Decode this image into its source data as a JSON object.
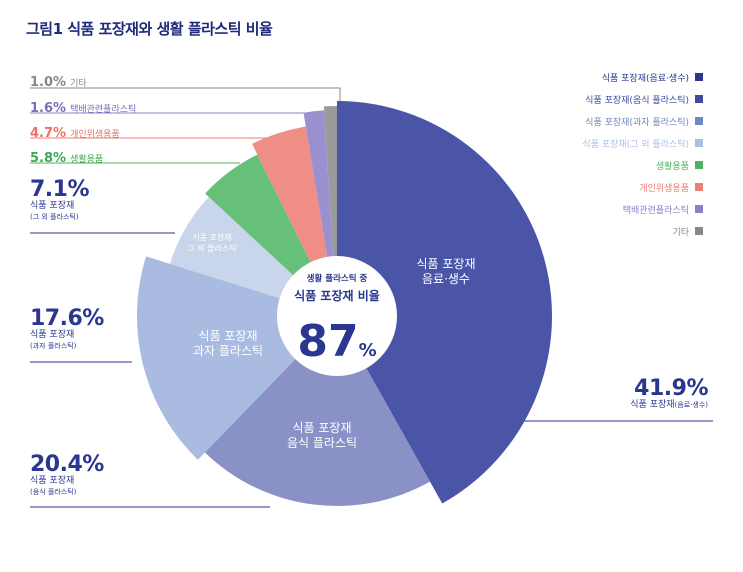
{
  "title": "그림1  식품 포장재와 생활 플라스틱 비율",
  "colors": {
    "beverage": "#4a55a8",
    "food": "#8a91c6",
    "snack": "#a9bbe0",
    "other_food": "#c9d5ea",
    "household": "#66c07a",
    "hygiene": "#ef8e84",
    "delivery": "#9b90cf",
    "etc": "#9a9a9a",
    "navy": "#2a3690"
  },
  "center": {
    "line1": "생활 플라스틱 중",
    "line2": "식품 포장재 비율",
    "value": "87",
    "unit": "%"
  },
  "slice_labels": {
    "beverage": [
      "식품 포장재",
      "음료·생수"
    ],
    "food": [
      "식품 포장재",
      "음식 플라스틱"
    ],
    "snack": [
      "식품 포장재",
      "과자 플라스틱"
    ],
    "other_food": [
      "식품 포장재",
      "그 외 플라스틱"
    ]
  },
  "external": {
    "etc": {
      "pct": "1.0%",
      "name": "기타"
    },
    "delivery": {
      "pct": "1.6%",
      "name": "택배관련플라스틱"
    },
    "hygiene": {
      "pct": "4.7%",
      "name": "개인위생용품"
    },
    "household": {
      "pct": "5.8%",
      "name": "생활용품"
    },
    "other_food": {
      "pct": "7.1%",
      "sub1": "식품 포장재",
      "sub2": "(그 외 플라스틱)"
    },
    "snack": {
      "pct": "17.6%",
      "sub1": "식품 포장재",
      "sub2": "(과자 플라스틱)"
    },
    "food": {
      "pct": "20.4%",
      "sub1": "식품 포장재",
      "sub2": "(음식 플라스틱)"
    },
    "beverage": {
      "pct": "41.9%",
      "sub1": "식품 포장재",
      "sub2": "(음료·생수)"
    }
  },
  "legend": [
    {
      "label": "식품 포장재(음료·생수)",
      "color": "#2a3690"
    },
    {
      "label": "식품 포장재(음식 플라스틱)",
      "color": "#3d4aa0"
    },
    {
      "label": "식품 포장재(과자 플라스틱)",
      "color": "#6f86c4"
    },
    {
      "label": "식품 포장재(그 외 플라스틱)",
      "color": "#aabfe2"
    },
    {
      "label": "생활용품",
      "color": "#4fb35f"
    },
    {
      "label": "개인위생용품",
      "color": "#ee7d72"
    },
    {
      "label": "택배관련플라스틱",
      "color": "#8c80c8"
    },
    {
      "label": "기타",
      "color": "#888888"
    }
  ],
  "chart_data": {
    "type": "pie",
    "categories": [
      "식품 포장재(음료·생수)",
      "식품 포장재(음식 플라스틱)",
      "식품 포장재(과자 플라스틱)",
      "식품 포장재(그 외 플라스틱)",
      "생활용품",
      "개인위생용품",
      "택배관련플라스틱",
      "기타"
    ],
    "values": [
      41.9,
      20.4,
      17.6,
      7.1,
      5.8,
      4.7,
      1.6,
      1.0
    ],
    "title": "그림1  식품 포장재와 생활 플라스틱 비율",
    "legend": "top-right",
    "center_value": 87
  }
}
